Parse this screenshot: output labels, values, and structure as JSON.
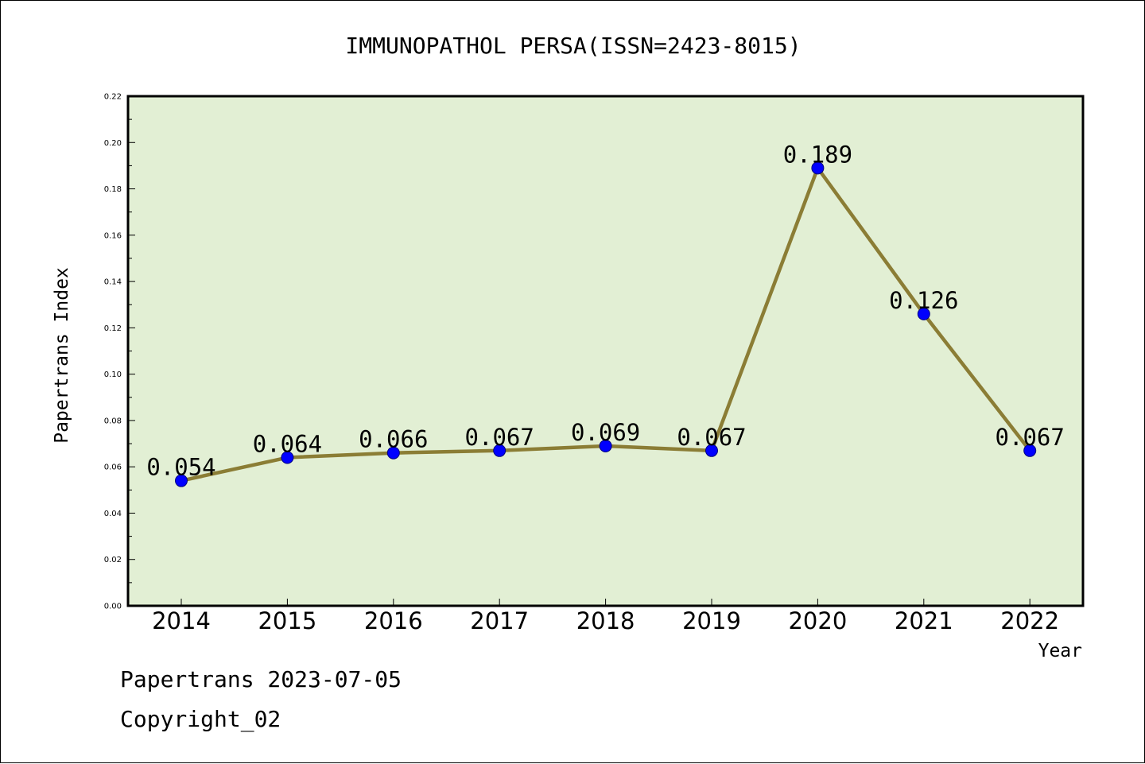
{
  "chart_data": {
    "type": "line",
    "title": "IMMUNOPATHOL PERSA(ISSN=2423-8015)",
    "xlabel": "Year",
    "ylabel": "Papertrans Index",
    "categories": [
      "2014",
      "2015",
      "2016",
      "2017",
      "2018",
      "2019",
      "2020",
      "2021",
      "2022"
    ],
    "series": [
      {
        "values": [
          0.054,
          0.064,
          0.066,
          0.067,
          0.069,
          0.067,
          0.189,
          0.126,
          0.067
        ],
        "labels": [
          "0.054",
          "0.064",
          "0.066",
          "0.067",
          "0.069",
          "0.067",
          "0.189",
          "0.126",
          "0.067"
        ]
      }
    ],
    "ylim": [
      0,
      0.22
    ],
    "yticks": [
      "0.00",
      "0.02",
      "0.04",
      "0.06",
      "0.08",
      "0.10",
      "0.12",
      "0.14",
      "0.16",
      "0.18",
      "0.20",
      "0.22"
    ],
    "grid": false,
    "legend": "none",
    "colors": {
      "plot_background": "#e2efd4",
      "line": "#8b7d35",
      "marker": "#0000ff",
      "marker_edge": "#000080",
      "axes": "#000000"
    }
  },
  "footer": {
    "line1": "Papertrans 2023-07-05",
    "line2": "Copyright_02"
  }
}
